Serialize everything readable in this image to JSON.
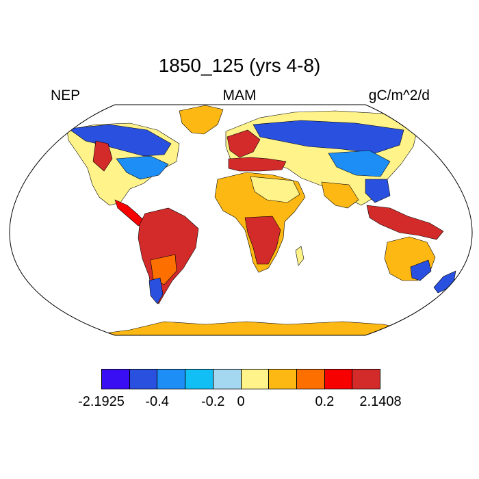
{
  "title": "1850_125 (yrs 4-8)",
  "left_label": "NEP",
  "center_label": "MAM",
  "right_label": "gC/m^2/d",
  "colorbar": {
    "colors": [
      "#3a0ef2",
      "#2a50e0",
      "#1e8ef7",
      "#12bff5",
      "#a4d8f0",
      "#fff38a",
      "#fdb813",
      "#fd7000",
      "#f70000",
      "#d32a2a"
    ],
    "tick_labels": [
      "-2.1925",
      "-0.4",
      "-0.2",
      "0",
      "0.2",
      "2.1408"
    ]
  },
  "map": {
    "projection": "Robinson",
    "colors": {
      "ocean": "#ffffff",
      "coast": "#000000",
      "antarctica": "#fdb813",
      "land_neutral": "#fff38a",
      "land_warm": "#fdb813",
      "blue_strong": "#2a50e0",
      "blue_mid": "#1e8ef7",
      "red": "#d32a2a",
      "red_bright": "#f70000",
      "orange": "#fd7000"
    }
  }
}
